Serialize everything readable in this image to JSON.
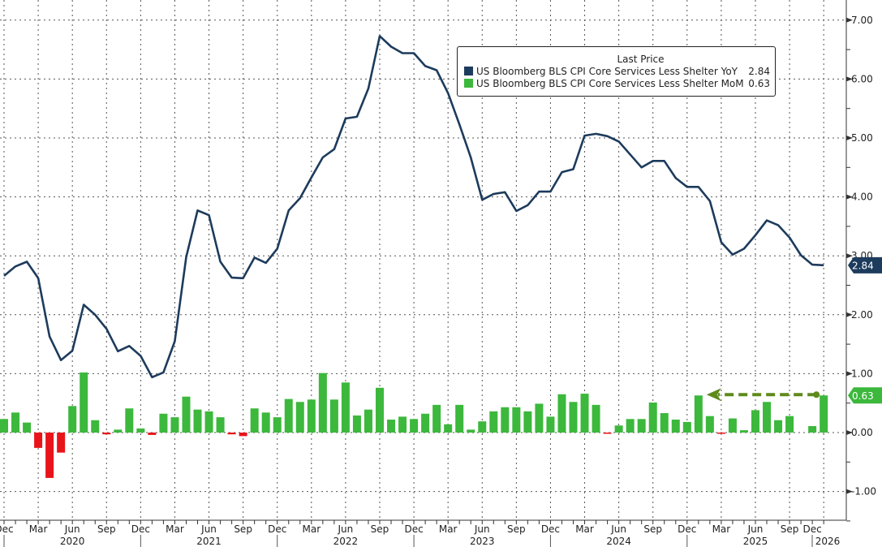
{
  "chart_data": {
    "type": "line",
    "legend": {
      "title": "Last Price",
      "placement": "top-right",
      "entries": [
        {
          "name": "US Bloomberg BLS CPI Core Services Less Shelter YoY",
          "value": "2.84",
          "color": "#1d3b5c"
        },
        {
          "name": "US Bloomberg BLS CPI Core Services Less Shelter MoM",
          "value": "0.63",
          "color": "#3cb83c"
        }
      ]
    },
    "x": [
      "Dec 2019",
      "Jan 2020",
      "Feb 2020",
      "Mar 2020",
      "Apr 2020",
      "May 2020",
      "Jun 2020",
      "Jul 2020",
      "Aug 2020",
      "Sep 2020",
      "Oct 2020",
      "Nov 2020",
      "Dec 2020",
      "Jan 2021",
      "Feb 2021",
      "Mar 2021",
      "Apr 2021",
      "May 2021",
      "Jun 2021",
      "Jul 2021",
      "Aug 2021",
      "Sep 2021",
      "Oct 2021",
      "Nov 2021",
      "Dec 2021",
      "Jan 2022",
      "Feb 2022",
      "Mar 2022",
      "Apr 2022",
      "May 2022",
      "Jun 2022",
      "Jul 2022",
      "Aug 2022",
      "Sep 2022",
      "Oct 2022",
      "Nov 2022",
      "Dec 2022",
      "Jan 2023",
      "Feb 2023",
      "Mar 2023",
      "Apr 2023",
      "May 2023",
      "Jun 2023",
      "Jul 2023",
      "Aug 2023",
      "Sep 2023",
      "Oct 2023",
      "Nov 2023",
      "Dec 2023",
      "Jan 2024",
      "Feb 2024",
      "Mar 2024",
      "Apr 2024",
      "May 2024",
      "Jun 2024",
      "Jul 2024",
      "Aug 2024",
      "Sep 2024",
      "Oct 2024",
      "Nov 2024",
      "Dec 2024",
      "Jan 2025",
      "Feb 2025",
      "Mar 2025",
      "Apr 2025",
      "May 2025",
      "Jun 2025",
      "Jul 2025",
      "Aug 2025",
      "Sep 2025",
      "Oct 2025",
      "Nov 2025",
      "Dec 2025"
    ],
    "series": [
      {
        "name": "US Bloomberg BLS CPI Core Services Less Shelter YoY",
        "type": "line",
        "color": "#1d3b5c",
        "values": [
          2.66,
          2.82,
          2.9,
          2.62,
          1.63,
          1.23,
          1.39,
          2.17,
          2.0,
          1.76,
          1.38,
          1.47,
          1.3,
          0.94,
          1.02,
          1.55,
          2.98,
          3.77,
          3.69,
          2.9,
          2.63,
          2.62,
          2.97,
          2.88,
          3.12,
          3.77,
          3.98,
          4.33,
          4.67,
          4.81,
          5.33,
          5.36,
          5.84,
          6.73,
          6.55,
          6.44,
          6.44,
          6.22,
          6.15,
          5.76,
          5.23,
          4.67,
          3.95,
          4.05,
          4.08,
          3.76,
          3.86,
          4.09,
          4.09,
          4.42,
          4.47,
          5.04,
          5.07,
          5.03,
          4.94,
          4.72,
          4.5,
          4.61,
          4.61,
          4.32,
          4.17,
          4.17,
          3.93,
          3.23,
          3.02,
          3.12,
          3.35,
          3.6,
          3.52,
          3.31,
          3.01,
          2.85,
          2.84
        ]
      },
      {
        "name": "US Bloomberg BLS CPI Core Services Less Shelter MoM",
        "type": "bar",
        "color": "#3cb83c",
        "negative_color": "#e8141a",
        "values": [
          0.23,
          0.34,
          0.17,
          -0.26,
          -0.77,
          -0.34,
          0.45,
          1.02,
          0.21,
          -0.03,
          0.05,
          0.41,
          0.07,
          -0.04,
          0.32,
          0.26,
          0.61,
          0.39,
          0.36,
          0.26,
          -0.03,
          -0.06,
          0.41,
          0.34,
          0.26,
          0.57,
          0.52,
          0.56,
          1.01,
          0.56,
          0.85,
          0.29,
          0.39,
          0.76,
          0.22,
          0.27,
          0.23,
          0.32,
          0.47,
          0.14,
          0.47,
          0.05,
          0.19,
          0.36,
          0.43,
          0.43,
          0.36,
          0.49,
          0.27,
          0.65,
          0.52,
          0.66,
          0.47,
          -0.01,
          0.12,
          0.23,
          0.23,
          0.51,
          0.33,
          0.22,
          0.18,
          0.63,
          0.28,
          -0.01,
          0.24,
          0.04,
          0.38,
          0.52,
          0.21,
          0.28,
          null,
          0.11,
          0.63
        ]
      }
    ],
    "ylim": [
      -1.5,
      7.3
    ],
    "y_axis_side": "right",
    "y_ticks": [
      "7.00",
      "6.00",
      "5.00",
      "4.00",
      "3.00",
      "2.00",
      "1.00",
      "0.00",
      "-1.00"
    ],
    "y_tick_values": [
      7,
      6,
      5,
      4,
      3,
      2,
      1,
      0,
      -1
    ],
    "x_tick_labels": [
      "Dec",
      "Mar",
      "Jun",
      "Sep",
      "Dec",
      "Mar",
      "Jun",
      "Sep",
      "Dec",
      "Mar",
      "Jun",
      "Sep",
      "Dec",
      "Mar",
      "Jun",
      "Sep",
      "Dec",
      "Mar",
      "Jun",
      "Sep",
      "Dec",
      "Mar",
      "Jun",
      "Sep",
      "Dec"
    ],
    "x_year_labels": [
      "2020",
      "2021",
      "2022",
      "2023",
      "2024",
      "2025",
      "2026"
    ],
    "grid": true,
    "last_value_tags": [
      {
        "value": "2.84",
        "y": 2.84,
        "color": "#1d3b5c"
      },
      {
        "value": "0.63",
        "y": 0.63,
        "color": "#3cb83c"
      }
    ],
    "annotation": {
      "type": "dashed-arrow",
      "from": "Dec 2025",
      "to": "Jan 2025",
      "level": 0.63,
      "color": "#5e8a1c"
    }
  }
}
